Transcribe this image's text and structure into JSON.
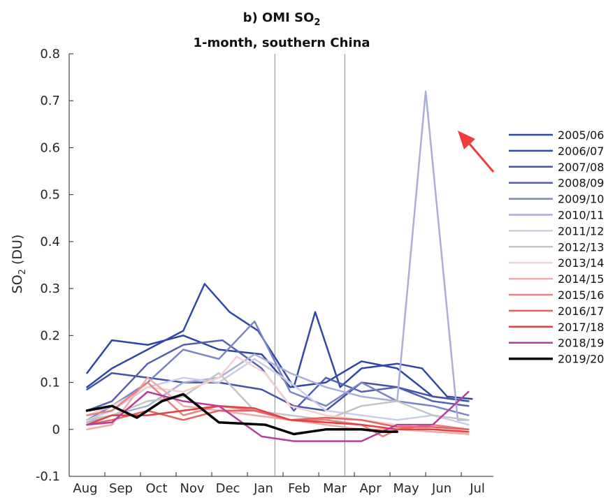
{
  "chart_data": {
    "type": "line",
    "title_prefix": "b) OMI SO",
    "title_sub": "2",
    "title_line2": "1-month, southern China",
    "ylabel_prefix": "SO",
    "ylabel_sub": "2",
    "ylabel_suffix": " (DU)",
    "xlabel": "",
    "ylim": [
      -0.1,
      0.8
    ],
    "yticks": [
      -0.1,
      0,
      0.1,
      0.2,
      0.3,
      0.4,
      0.5,
      0.6,
      0.7,
      0.8
    ],
    "ytick_labels": [
      "-0.1",
      "0",
      "0.1",
      "0.2",
      "0.3",
      "0.4",
      "0.5",
      "0.6",
      "0.7",
      "0.8"
    ],
    "xlim": [
      8,
      19.9
    ],
    "xticks": [
      8,
      9,
      10,
      11,
      12,
      13,
      14,
      15,
      16,
      17,
      18,
      19
    ],
    "xtick_labels": [
      "Aug",
      "Sep",
      "Oct",
      "Nov",
      "Dec",
      "Jan",
      "Feb",
      "Mar",
      "Apr",
      "May",
      "Jun",
      "Jul"
    ],
    "vertical_lines": [
      13.77,
      15.73
    ],
    "grid": false,
    "legend_position": "right",
    "annotation": {
      "type": "red-arrow",
      "points_to": "2010/11 peak"
    },
    "series": [
      {
        "name": "2005/06",
        "color": "#2b46a5",
        "width": 2.5,
        "x": [
          8.5,
          9.2,
          10.2,
          11.2,
          12.2,
          13.4,
          14.2,
          15.2,
          16.2,
          17.2,
          18.2,
          19.2
        ],
        "values": [
          0.12,
          0.19,
          0.18,
          0.2,
          0.17,
          0.16,
          0.09,
          0.1,
          0.145,
          0.13,
          0.07,
          0.06
        ]
      },
      {
        "name": "2006/07",
        "color": "#3049a8",
        "width": 2.5,
        "x": [
          8.5,
          9.2,
          10.2,
          11.2,
          11.8,
          12.5,
          13.3,
          14.3,
          14.9,
          15.6,
          16.2,
          17.2,
          17.9,
          18.6,
          19.3
        ],
        "values": [
          0.09,
          0.13,
          0.17,
          0.21,
          0.31,
          0.25,
          0.21,
          0.09,
          0.25,
          0.09,
          0.13,
          0.14,
          0.13,
          0.07,
          0.065
        ]
      },
      {
        "name": "2007/08",
        "color": "#4253a8",
        "width": 2.5,
        "x": [
          8.5,
          9.2,
          10.2,
          11.2,
          12.2,
          13.4,
          14.3,
          15.2,
          16.2,
          17.2,
          18.2,
          19.2
        ],
        "values": [
          0.085,
          0.12,
          0.11,
          0.1,
          0.1,
          0.085,
          0.05,
          0.04,
          0.1,
          0.09,
          0.07,
          0.06
        ]
      },
      {
        "name": "2008/09",
        "color": "#5361b0",
        "width": 2.5,
        "x": [
          8.5,
          9.2,
          10.2,
          11.2,
          12.3,
          13.4,
          14.3,
          15.2,
          16.2,
          17.2,
          18.2,
          19.2
        ],
        "values": [
          0.04,
          0.06,
          0.14,
          0.18,
          0.19,
          0.13,
          0.04,
          0.11,
          0.08,
          0.09,
          0.06,
          0.05
        ]
      },
      {
        "name": "2009/10",
        "color": "#7b84c8",
        "width": 2.5,
        "x": [
          8.5,
          9.2,
          10.2,
          11.2,
          12.2,
          13.2,
          14.2,
          15.2,
          16.2,
          17.2,
          18.2,
          19.2
        ],
        "values": [
          0.02,
          0.05,
          0.1,
          0.17,
          0.15,
          0.23,
          0.08,
          0.05,
          0.1,
          0.06,
          0.05,
          0.03
        ]
      },
      {
        "name": "2010/11",
        "color": "#aaaed8",
        "width": 2.5,
        "x": [
          8.5,
          9.2,
          10.2,
          11.2,
          12.2,
          13.2,
          14.2,
          15.2,
          16.2,
          17.2,
          18.0,
          18.9,
          19.2
        ],
        "values": [
          0.015,
          0.03,
          0.05,
          0.1,
          0.11,
          0.16,
          0.12,
          0.09,
          0.07,
          0.06,
          0.72,
          0.02,
          0.02
        ]
      },
      {
        "name": "2011/12",
        "color": "#ccccea",
        "width": 2.5,
        "x": [
          8.5,
          9.2,
          10.2,
          11.2,
          12.2,
          13.2,
          14.2,
          15.2,
          16.2,
          17.2,
          18.2,
          19.2
        ],
        "values": [
          0.02,
          0.04,
          0.09,
          0.11,
          0.1,
          0.15,
          0.1,
          0.04,
          0.03,
          0.02,
          0.03,
          0.01
        ]
      },
      {
        "name": "2012/13",
        "color": "#c4c4c4",
        "width": 2.5,
        "x": [
          8.5,
          9.2,
          10.2,
          11.2,
          12.2,
          13.2,
          14.2,
          15.2,
          16.2,
          17.2,
          18.2,
          19.2
        ],
        "values": [
          0.02,
          0.03,
          0.06,
          0.07,
          0.12,
          0.04,
          0.03,
          0.02,
          0.05,
          0.06,
          0.03,
          0.02
        ]
      },
      {
        "name": "2013/14",
        "color": "#f6cfcf",
        "width": 2.5,
        "x": [
          8.5,
          9.2,
          10.2,
          11.2,
          12.2,
          12.7,
          13.5,
          14.2,
          15.2,
          16.2,
          17.2,
          18.2,
          19.2
        ],
        "values": [
          0.03,
          0.05,
          0.09,
          0.08,
          0.11,
          0.155,
          0.12,
          0.05,
          0.03,
          0.02,
          0.01,
          0.0,
          -0.01
        ]
      },
      {
        "name": "2014/15",
        "color": "#efaaaa",
        "width": 2.5,
        "x": [
          8.5,
          9.2,
          10.2,
          11.2,
          12.2,
          13.2,
          14.2,
          15.2,
          16.2,
          17.2,
          18.2,
          19.2
        ],
        "values": [
          0.0,
          0.01,
          0.11,
          0.05,
          0.04,
          0.03,
          0.02,
          0.01,
          0.0,
          0.0,
          -0.005,
          -0.01
        ]
      },
      {
        "name": "2015/16",
        "color": "#ea8181",
        "width": 2.5,
        "x": [
          8.5,
          9.2,
          10.2,
          11.2,
          12.2,
          13.2,
          14.2,
          15.2,
          16.2,
          16.8,
          17.2,
          18.2,
          19.2
        ],
        "values": [
          0.03,
          0.04,
          0.1,
          0.03,
          0.05,
          0.04,
          0.02,
          0.02,
          0.01,
          -0.015,
          0.0,
          0.01,
          0.0
        ]
      },
      {
        "name": "2016/17",
        "color": "#e36262",
        "width": 2.5,
        "x": [
          8.5,
          9.2,
          10.2,
          11.2,
          12.2,
          13.2,
          14.2,
          15.2,
          16.2,
          17.2,
          18.2,
          19.2
        ],
        "values": [
          0.01,
          0.02,
          0.04,
          0.02,
          0.04,
          0.04,
          0.02,
          0.025,
          0.02,
          0.005,
          0.005,
          0.0
        ]
      },
      {
        "name": "2017/18",
        "color": "#e34040",
        "width": 2.5,
        "x": [
          8.5,
          9.2,
          10.2,
          11.2,
          12.2,
          13.2,
          14.2,
          15.2,
          16.2,
          17.2,
          18.2,
          19.2
        ],
        "values": [
          0.01,
          0.03,
          0.03,
          0.04,
          0.05,
          0.045,
          0.02,
          0.015,
          0.01,
          0.0,
          0.0,
          -0.005
        ]
      },
      {
        "name": "2018/19",
        "color": "#b63e9c",
        "width": 2.5,
        "x": [
          8.5,
          9.2,
          10.2,
          11.2,
          12.2,
          13.4,
          14.3,
          15.2,
          16.2,
          17.2,
          18.2,
          19.2
        ],
        "values": [
          0.01,
          0.015,
          0.08,
          0.06,
          0.05,
          -0.015,
          -0.025,
          -0.025,
          -0.025,
          0.01,
          0.01,
          0.08
        ]
      },
      {
        "name": "2019/20",
        "color": "#000000",
        "width": 3.5,
        "x": [
          8.5,
          9.2,
          9.9,
          10.6,
          11.2,
          12.2,
          13.5,
          14.3,
          15.2,
          16.2,
          16.8,
          17.2
        ],
        "values": [
          0.04,
          0.05,
          0.025,
          0.06,
          0.075,
          0.015,
          0.01,
          -0.01,
          0.0,
          0.0,
          -0.005,
          -0.005
        ]
      }
    ]
  }
}
